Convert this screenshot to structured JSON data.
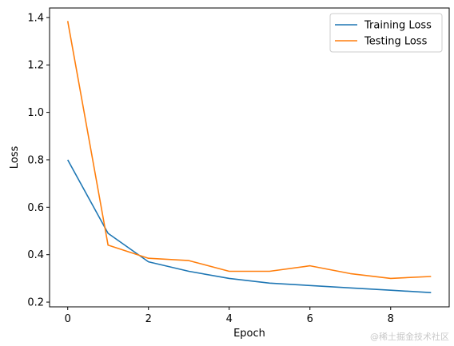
{
  "chart_data": {
    "type": "line",
    "xlabel": "Epoch",
    "ylabel": "Loss",
    "x": [
      0,
      1,
      2,
      3,
      4,
      5,
      6,
      7,
      8,
      9
    ],
    "xticks": [
      0,
      2,
      4,
      6,
      8
    ],
    "yticks": [
      0.2,
      0.4,
      0.6,
      0.8,
      1.0,
      1.2,
      1.4
    ],
    "xlim": [
      -0.45,
      9.45
    ],
    "ylim": [
      0.18,
      1.44
    ],
    "legend_placement": "top-right",
    "grid": false,
    "series": [
      {
        "name": "Training Loss",
        "color": "#1f77b4",
        "values": [
          0.8,
          0.49,
          0.37,
          0.33,
          0.3,
          0.28,
          0.27,
          0.26,
          0.25,
          0.24
        ]
      },
      {
        "name": "Testing Loss",
        "color": "#ff7f0e",
        "values": [
          1.385,
          0.44,
          0.385,
          0.375,
          0.33,
          0.33,
          0.353,
          0.32,
          0.3,
          0.308
        ]
      }
    ]
  },
  "watermark": "@稀土掘金技术社区"
}
